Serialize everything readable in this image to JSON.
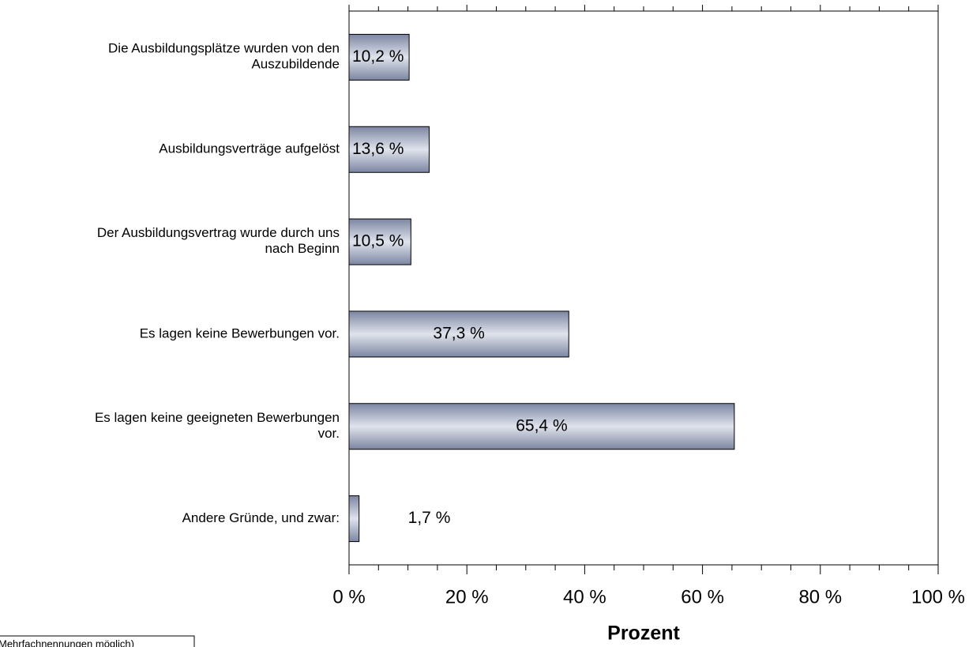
{
  "chart_data": {
    "type": "barh",
    "categories": [
      "Die Ausbildungsplätze wurden von den\nAuszubildende",
      "Ausbildungsverträge aufgelöst",
      "Der Ausbildungsvertrag wurde durch uns\nnach Beginn",
      "Es lagen keine Bewerbungen vor.",
      "Es lagen keine geeigneten Bewerbungen\nvor.",
      "Andere Gründe, und zwar:"
    ],
    "values": [
      10.2,
      13.6,
      10.5,
      37.3,
      65.4,
      1.7
    ],
    "value_labels": [
      "10,2 %",
      "13,6 %",
      "10,5 %",
      "37,3 %",
      "65,4 %",
      "1,7 %"
    ],
    "color": "#7c86a2",
    "xlim": [
      0,
      100
    ],
    "xticks": [
      {
        "value": 0,
        "label": "0 %"
      },
      {
        "value": 20,
        "label": "20 %"
      },
      {
        "value": 40,
        "label": "40 %"
      },
      {
        "value": 60,
        "label": "60 %"
      },
      {
        "value": 80,
        "label": "80 %"
      },
      {
        "value": 100,
        "label": "100 %"
      }
    ],
    "xlabel": "Prozent",
    "annotation": "Mehrfachnennungen möglich)"
  }
}
